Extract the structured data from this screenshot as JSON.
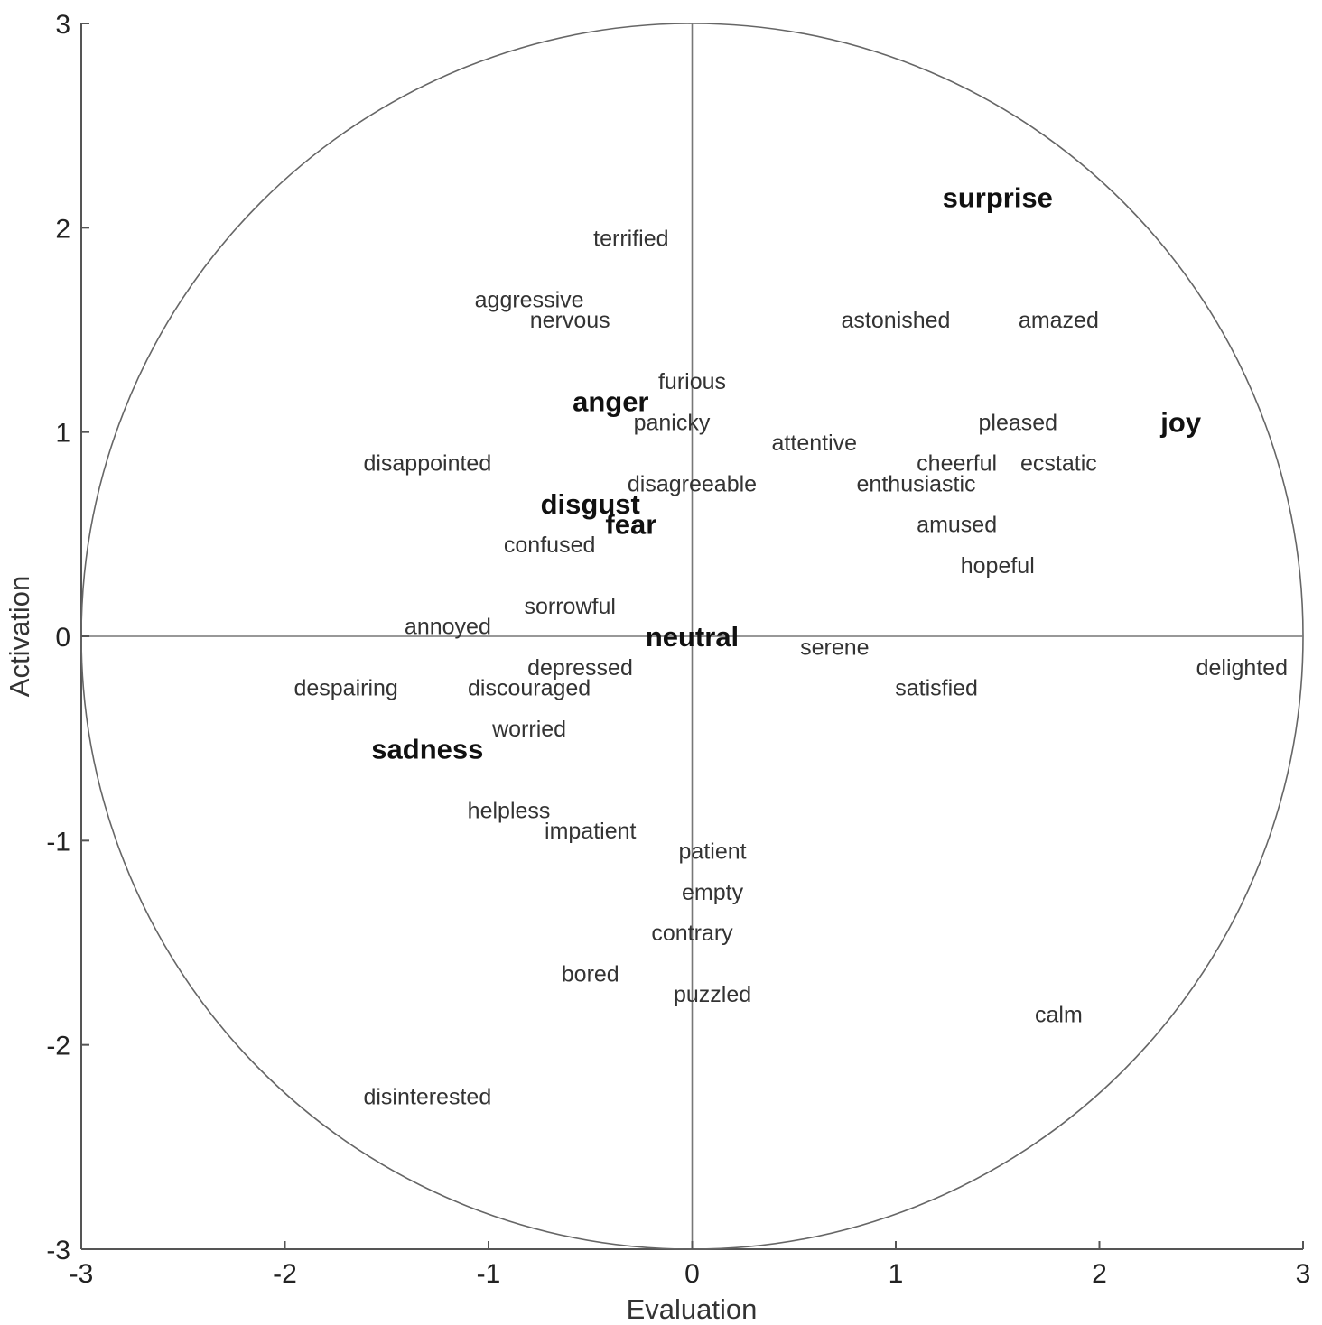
{
  "chart_data": {
    "type": "scatter",
    "xlabel": "Evaluation",
    "ylabel": "Activation",
    "xlim": [
      -3,
      3
    ],
    "ylim": [
      -3,
      3
    ],
    "xticks": [
      "-3",
      "-2",
      "-1",
      "0",
      "1",
      "2",
      "3"
    ],
    "yticks": [
      "-3",
      "-2",
      "-1",
      "0",
      "1",
      "2",
      "3"
    ],
    "unit_circle_radius": 3,
    "origin_lines": true,
    "basic_emotions": [
      {
        "label": "surprise",
        "x": 1.5,
        "y": 2.15
      },
      {
        "label": "joy",
        "x": 2.4,
        "y": 1.05
      },
      {
        "label": "anger",
        "x": -0.4,
        "y": 1.15
      },
      {
        "label": "disgust",
        "x": -0.5,
        "y": 0.65
      },
      {
        "label": "fear",
        "x": -0.3,
        "y": 0.55
      },
      {
        "label": "neutral",
        "x": 0.0,
        "y": 0.0
      },
      {
        "label": "sadness",
        "x": -1.3,
        "y": -0.55
      }
    ],
    "words": [
      {
        "label": "terrified",
        "x": -0.3,
        "y": 1.95
      },
      {
        "label": "aggressive",
        "x": -0.8,
        "y": 1.65
      },
      {
        "label": "nervous",
        "x": -0.6,
        "y": 1.55
      },
      {
        "label": "astonished",
        "x": 1.0,
        "y": 1.55
      },
      {
        "label": "amazed",
        "x": 1.8,
        "y": 1.55
      },
      {
        "label": "furious",
        "x": 0.0,
        "y": 1.25
      },
      {
        "label": "panicky",
        "x": -0.1,
        "y": 1.05
      },
      {
        "label": "pleased",
        "x": 1.6,
        "y": 1.05
      },
      {
        "label": "attentive",
        "x": 0.6,
        "y": 0.95
      },
      {
        "label": "disappointed",
        "x": -1.3,
        "y": 0.85
      },
      {
        "label": "cheerful",
        "x": 1.3,
        "y": 0.85
      },
      {
        "label": "ecstatic",
        "x": 1.8,
        "y": 0.85
      },
      {
        "label": "disagreeable",
        "x": 0.0,
        "y": 0.75
      },
      {
        "label": "enthusiastic",
        "x": 1.1,
        "y": 0.75
      },
      {
        "label": "amused",
        "x": 1.3,
        "y": 0.55
      },
      {
        "label": "confused",
        "x": -0.7,
        "y": 0.45
      },
      {
        "label": "hopeful",
        "x": 1.5,
        "y": 0.35
      },
      {
        "label": "sorrowful",
        "x": -0.6,
        "y": 0.15
      },
      {
        "label": "annoyed",
        "x": -1.2,
        "y": 0.05
      },
      {
        "label": "serene",
        "x": 0.7,
        "y": -0.05
      },
      {
        "label": "depressed",
        "x": -0.55,
        "y": -0.15
      },
      {
        "label": "delighted",
        "x": 2.7,
        "y": -0.15
      },
      {
        "label": "despairing",
        "x": -1.7,
        "y": -0.25
      },
      {
        "label": "discouraged",
        "x": -0.8,
        "y": -0.25
      },
      {
        "label": "satisfied",
        "x": 1.2,
        "y": -0.25
      },
      {
        "label": "worried",
        "x": -0.8,
        "y": -0.45
      },
      {
        "label": "helpless",
        "x": -0.9,
        "y": -0.85
      },
      {
        "label": "impatient",
        "x": -0.5,
        "y": -0.95
      },
      {
        "label": "patient",
        "x": 0.1,
        "y": -1.05
      },
      {
        "label": "empty",
        "x": 0.1,
        "y": -1.25
      },
      {
        "label": "contrary",
        "x": 0.0,
        "y": -1.45
      },
      {
        "label": "bored",
        "x": -0.5,
        "y": -1.65
      },
      {
        "label": "puzzled",
        "x": 0.1,
        "y": -1.75
      },
      {
        "label": "calm",
        "x": 1.8,
        "y": -1.85
      },
      {
        "label": "disinterested",
        "x": -1.3,
        "y": -2.25
      }
    ]
  }
}
